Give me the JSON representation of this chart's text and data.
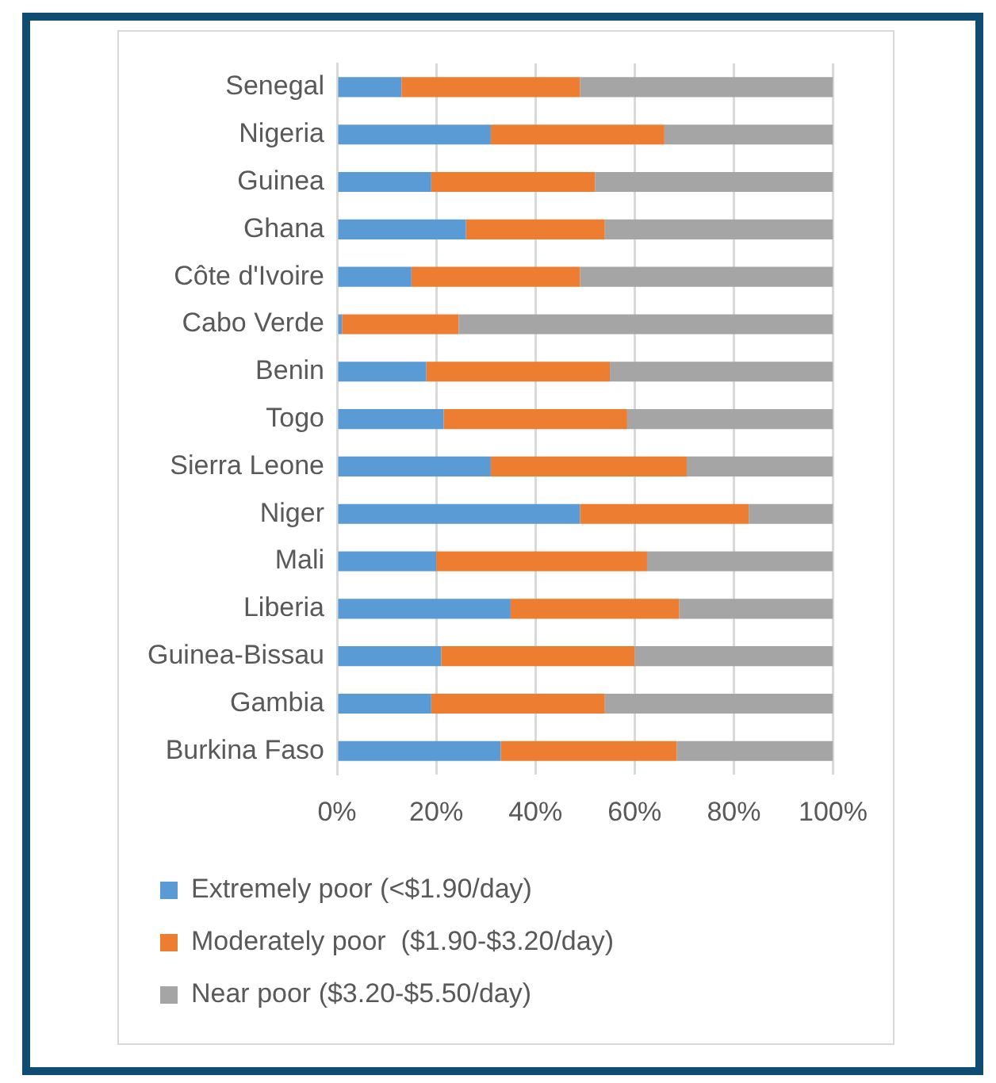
{
  "chart_data": {
    "type": "bar",
    "orientation": "horizontal",
    "stacked": true,
    "categories": [
      "Senegal",
      "Nigeria",
      "Guinea",
      "Ghana",
      "Côte d'Ivoire",
      "Cabo Verde",
      "Benin",
      "Togo",
      "Sierra Leone",
      "Niger",
      "Mali",
      "Liberia",
      "Guinea-Bissau",
      "Gambia",
      "Burkina Faso"
    ],
    "series": [
      {
        "name": "Extremely poor (<$1.90/day)",
        "color": "#5b9bd5",
        "values": [
          13,
          31,
          19,
          26,
          15,
          1,
          18,
          21.5,
          31,
          49,
          20,
          35,
          21,
          19,
          33
        ]
      },
      {
        "name": "Moderately poor  ($1.90-$3.20/day)",
        "color": "#ed7d31",
        "values": [
          36,
          35,
          33,
          28,
          34,
          23.5,
          37,
          37,
          39.5,
          34,
          42.5,
          34,
          39,
          35,
          35.5
        ]
      },
      {
        "name": "Near poor ($3.20-$5.50/day)",
        "color": "#a5a5a5",
        "values": [
          51,
          34,
          48,
          46,
          51,
          75.5,
          45,
          41.5,
          29.5,
          17,
          37.5,
          31,
          40,
          46,
          31.5
        ]
      }
    ],
    "xlim": [
      0,
      100
    ],
    "xticks": [
      {
        "value": 0,
        "label": "0%"
      },
      {
        "value": 20,
        "label": "20%"
      },
      {
        "value": 40,
        "label": "40%"
      },
      {
        "value": 60,
        "label": "60%"
      },
      {
        "value": 80,
        "label": "80%"
      },
      {
        "value": 100,
        "label": "100%"
      }
    ],
    "grid": "x",
    "legend": "bottom"
  }
}
